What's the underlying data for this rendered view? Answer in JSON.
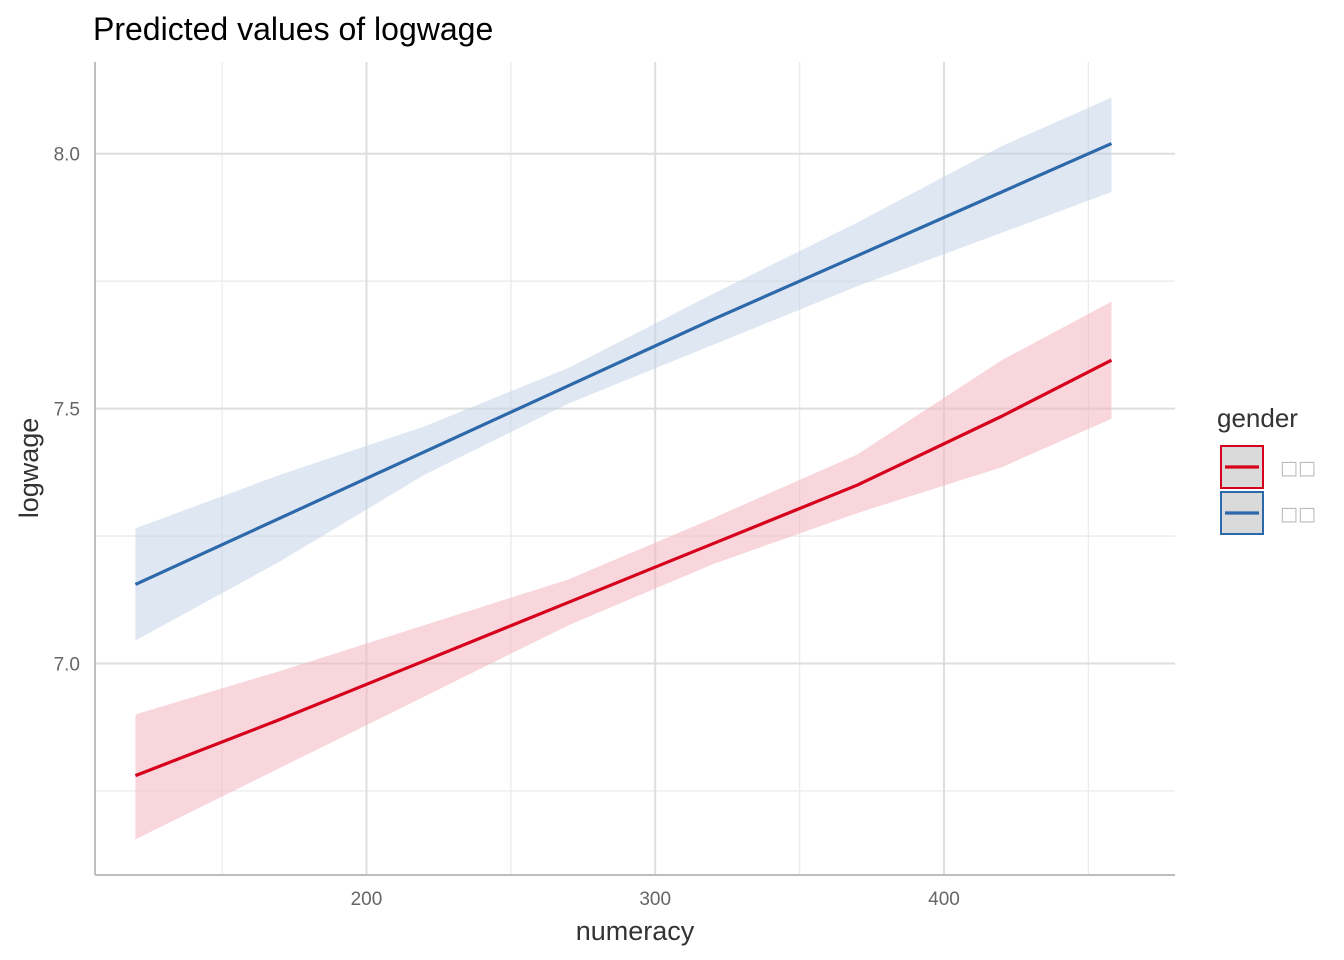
{
  "chart_data": {
    "type": "line",
    "title": "Predicted values of logwage",
    "xlabel": "numeracy",
    "ylabel": "logwage",
    "xlim": [
      106,
      480
    ],
    "ylim": [
      6.585,
      8.18
    ],
    "x_ticks": [
      200,
      300,
      400
    ],
    "x_tick_labels": [
      "200",
      "300",
      "400"
    ],
    "x_minor_ticks": [
      150,
      250,
      350,
      450
    ],
    "y_ticks": [
      7.0,
      7.5,
      8.0
    ],
    "y_tick_labels": [
      "7.0",
      "7.5",
      "8.0"
    ],
    "y_minor_ticks": [
      6.75,
      7.25,
      7.75
    ],
    "grid": true,
    "legend": {
      "title": "gender",
      "position": "right",
      "labels": [
        "□□",
        "□□"
      ]
    },
    "series": [
      {
        "name": "□□",
        "color": "#d7001c",
        "fill": "#f2b4bd",
        "x": [
          120,
          170,
          220,
          270,
          320,
          370,
          420,
          458
        ],
        "y": [
          6.78,
          6.89,
          7.005,
          7.12,
          7.235,
          7.35,
          7.485,
          7.595
        ],
        "ci_low": [
          6.655,
          6.795,
          6.935,
          7.075,
          7.195,
          7.295,
          7.385,
          7.48
        ],
        "ci_high": [
          6.9,
          6.985,
          7.075,
          7.165,
          7.285,
          7.41,
          7.595,
          7.71
        ]
      },
      {
        "name": "□□",
        "color": "#2c69aa",
        "fill": "#c4d3e8",
        "x": [
          120,
          170,
          220,
          270,
          320,
          370,
          420,
          458
        ],
        "y": [
          7.155,
          7.285,
          7.415,
          7.545,
          7.675,
          7.8,
          7.925,
          8.02
        ],
        "ci_low": [
          7.045,
          7.2,
          7.37,
          7.51,
          7.625,
          7.74,
          7.845,
          7.925
        ],
        "ci_high": [
          7.265,
          7.37,
          7.465,
          7.58,
          7.725,
          7.865,
          8.015,
          8.11
        ]
      }
    ]
  }
}
